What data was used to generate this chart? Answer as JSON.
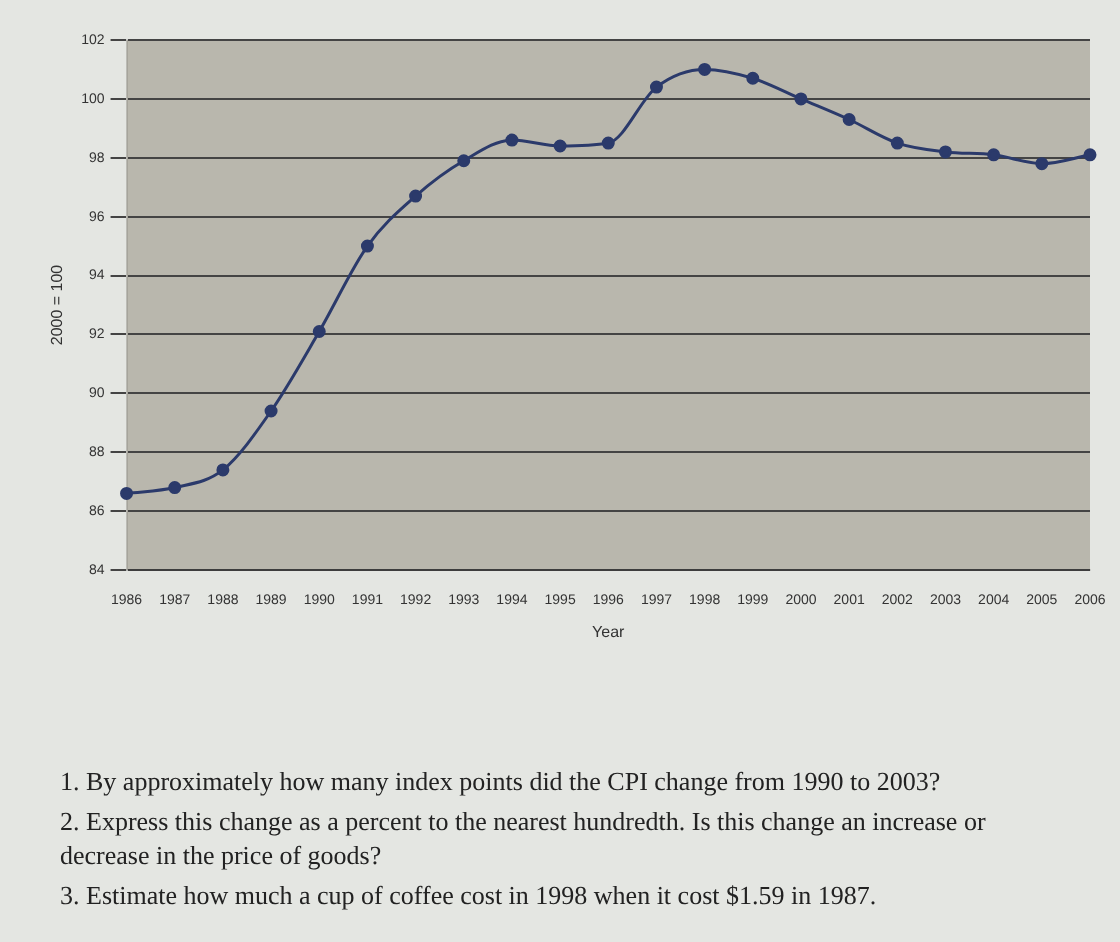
{
  "chart_data": {
    "type": "line",
    "xlabel": "Year",
    "ylabel": "2000 = 100",
    "categories": [
      "1986",
      "1987",
      "1988",
      "1989",
      "1990",
      "1991",
      "1992",
      "1993",
      "1994",
      "1995",
      "1996",
      "1997",
      "1998",
      "1999",
      "2000",
      "2001",
      "2002",
      "2003",
      "2004",
      "2005",
      "2006"
    ],
    "series": [
      {
        "color": "#2b3a6b",
        "values": [
          86.6,
          86.8,
          87.4,
          89.4,
          92.1,
          95.0,
          96.7,
          97.9,
          98.6,
          98.4,
          98.5,
          100.4,
          101.0,
          100.7,
          100.0,
          99.3,
          98.5,
          98.2,
          98.1,
          97.8,
          98.1
        ]
      }
    ],
    "ylim": [
      84,
      102
    ],
    "yticks": [
      84,
      86,
      88,
      90,
      92,
      94,
      96,
      98,
      100,
      102
    ],
    "grid": "y",
    "legend": false,
    "marker": "circle",
    "line_style": "solid",
    "annotations": [
      "1. By approximately how many index points did the CPI change from 1990 to 2003?",
      "2. Express this change as a percent to the nearest hundredth. Is this change an increase or decrease in the price of goods?",
      "3. Estimate how much a cup of coffee cost in 1998 when it cost $1.59 in 1987."
    ]
  }
}
